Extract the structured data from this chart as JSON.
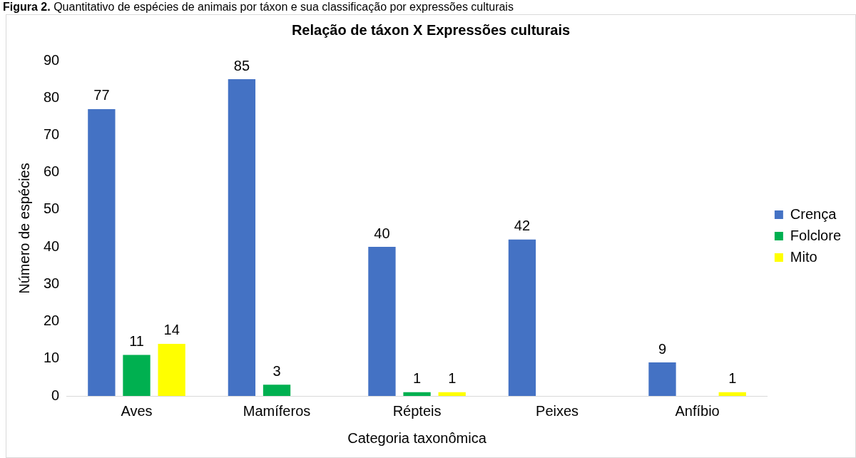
{
  "chart_data": {
    "type": "bar",
    "title": "Relação de táxon X Expressões culturais",
    "annotations": [
      "Figura 2. Quantitativo de espécies de animais por táxon e sua classificação por expressões culturais"
    ],
    "xlabel": "Categoria taxonômica",
    "ylabel": "Número de espécies",
    "categories": [
      "Aves",
      "Mamíferos",
      "Répteis",
      "Peixes",
      "Anfíbio"
    ],
    "series": [
      {
        "name": "Crença",
        "color": "#4472c4",
        "values": [
          77,
          85,
          40,
          42,
          9
        ]
      },
      {
        "name": "Folclore",
        "color": "#00b050",
        "values": [
          11,
          3,
          1,
          null,
          null
        ]
      },
      {
        "name": "Mito",
        "color": "#ffff00",
        "values": [
          14,
          null,
          1,
          null,
          1
        ]
      }
    ],
    "ylim": [
      0,
      90
    ],
    "yticks": [
      0,
      10,
      20,
      30,
      40,
      50,
      60,
      70,
      80,
      90
    ],
    "grid": false,
    "legend": "right",
    "data_labels": true
  }
}
